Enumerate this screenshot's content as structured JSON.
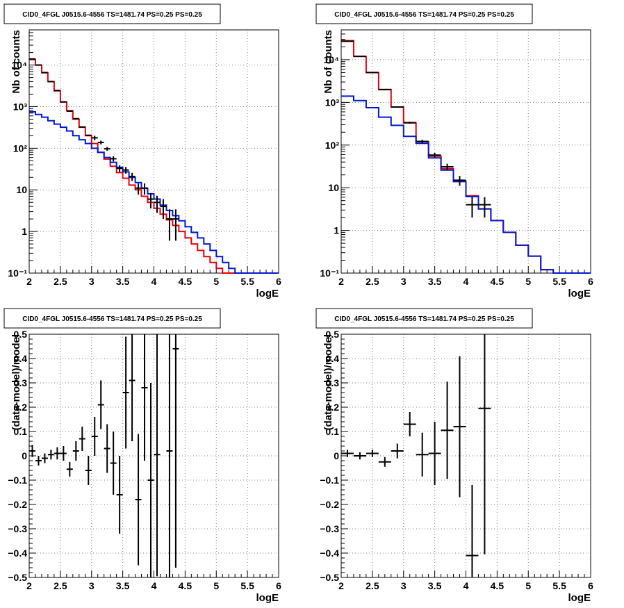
{
  "colors": {
    "data": "#000000",
    "total_model": "#e8000b",
    "source_model": "#0018d6",
    "grid": "#808080"
  },
  "chart_data": [
    {
      "type": "line",
      "title": "CID0_4FGL J0515.6-4556 TS=1481.74 PS=0.25 PS=0.25",
      "xlabel": "logE",
      "ylabel": "Nb of counts",
      "xlim": [
        2,
        6
      ],
      "ylim": [
        0.1,
        70000
      ],
      "yscale": "log",
      "grid": true,
      "x_ticks": [
        "2",
        "2.5",
        "3",
        "3.5",
        "4",
        "4.5",
        "5",
        "5.5",
        "6"
      ],
      "y_ticks": [
        {
          "v": 0.1,
          "label": "10⁻¹"
        },
        {
          "v": 1,
          "label": "1"
        },
        {
          "v": 10,
          "label": "10"
        },
        {
          "v": 100,
          "label": "10²"
        },
        {
          "v": 1000,
          "label": "10³"
        },
        {
          "v": 10000,
          "label": "10⁴"
        }
      ],
      "bin_width": 0.1,
      "series": [
        {
          "role": "total_model",
          "x_edges_start": 2.0,
          "values": [
            13500,
            10000,
            6500,
            4000,
            2400,
            1300,
            800,
            500,
            320,
            200,
            130,
            80,
            55,
            37,
            26,
            19,
            13,
            10,
            7,
            5,
            3.6,
            2.6,
            1.9,
            1.4,
            1.0,
            0.7,
            0.5,
            0.35,
            0.25,
            0.18,
            0.13,
            0.1,
            0.1,
            0.1,
            0.1,
            0.1,
            0.1,
            0.1,
            0.1,
            0.1
          ]
        },
        {
          "role": "source_model",
          "x_edges_start": 2.0,
          "values": [
            750,
            650,
            560,
            460,
            380,
            320,
            260,
            200,
            160,
            130,
            100,
            80,
            60,
            46,
            35,
            27,
            20,
            15,
            11,
            8,
            6,
            4.3,
            3.2,
            2.4,
            1.8,
            1.3,
            0.95,
            0.7,
            0.5,
            0.35,
            0.25,
            0.18,
            0.13,
            0.1,
            0.1,
            0.1,
            0.1,
            0.1,
            0.1,
            0.1
          ]
        },
        {
          "role": "data",
          "points": [
            [
              2.05,
              14000,
              0
            ],
            [
              2.15,
              10000,
              0
            ],
            [
              2.25,
              6600,
              0
            ],
            [
              2.35,
              4000,
              0
            ],
            [
              2.45,
              2450,
              0
            ],
            [
              2.55,
              1300,
              0
            ],
            [
              2.65,
              780,
              0
            ],
            [
              2.75,
              515,
              0
            ],
            [
              2.85,
              325,
              0
            ],
            [
              2.95,
              205,
              0
            ],
            [
              3.05,
              178,
              22
            ],
            [
              3.15,
              138,
              14
            ],
            [
              3.25,
              97,
              10
            ],
            [
              3.35,
              56,
              8
            ],
            [
              3.45,
              33,
              6
            ],
            [
              3.55,
              30,
              5.5
            ],
            [
              3.65,
              21,
              4.6
            ],
            [
              3.75,
              11,
              3.3
            ],
            [
              3.85,
              11,
              3.3
            ],
            [
              3.95,
              6,
              2.4
            ],
            [
              4.05,
              5,
              2.2
            ],
            [
              4.15,
              4,
              2
            ],
            [
              4.25,
              2,
              1.4
            ],
            [
              4.35,
              2,
              1.4
            ]
          ]
        }
      ]
    },
    {
      "type": "line",
      "title": "CID0_4FGL J0515.6-4556 TS=1481.74 PS=0.25 PS=0.25",
      "xlabel": "logE",
      "ylabel": "Nb of counts",
      "xlim": [
        2,
        6
      ],
      "ylim": [
        0.1,
        50000
      ],
      "yscale": "log",
      "grid": true,
      "x_ticks": [
        "2",
        "2.5",
        "3",
        "3.5",
        "4",
        "4.5",
        "5",
        "5.5",
        "6"
      ],
      "y_ticks": [
        {
          "v": 0.1,
          "label": "10⁻¹"
        },
        {
          "v": 1,
          "label": "1"
        },
        {
          "v": 10,
          "label": "10"
        },
        {
          "v": 100,
          "label": "10²"
        },
        {
          "v": 1000,
          "label": "10³"
        },
        {
          "v": 10000,
          "label": "10⁴"
        }
      ],
      "bin_width": 0.2,
      "series": [
        {
          "role": "total_model",
          "x_edges_start": 2.0,
          "values": [
            28000,
            12000,
            5000,
            2000,
            780,
            330,
            120,
            55,
            28,
            14,
            6.5,
            3.2,
            1.7,
            0.9,
            0.45,
            0.25,
            0.12,
            0.1,
            0.1,
            0.1
          ]
        },
        {
          "role": "source_model",
          "x_edges_start": 2.0,
          "values": [
            1400,
            1100,
            750,
            450,
            290,
            160,
            110,
            50,
            26,
            14,
            6.2,
            3.2,
            1.7,
            0.9,
            0.45,
            0.25,
            0.12,
            0.1,
            0.1,
            0.1
          ]
        },
        {
          "role": "data",
          "points": [
            [
              2.1,
              27000,
              0
            ],
            [
              2.3,
              12000,
              0
            ],
            [
              2.5,
              5000,
              0
            ],
            [
              2.7,
              2000,
              0
            ],
            [
              2.9,
              780,
              0
            ],
            [
              3.1,
              335,
              18
            ],
            [
              3.3,
              122,
              11
            ],
            [
              3.5,
              58,
              7.6
            ],
            [
              3.7,
              31,
              5.5
            ],
            [
              3.9,
              15,
              3.9
            ],
            [
              4.1,
              4,
              2
            ],
            [
              4.3,
              4,
              2
            ]
          ]
        }
      ]
    },
    {
      "type": "scatter",
      "title": "CID0_4FGL J0515.6-4556 TS=1481.74 PS=0.25 PS=0.25",
      "xlabel": "logE",
      "ylabel": "(data-model)/model",
      "xlim": [
        2,
        6
      ],
      "ylim": [
        -0.5,
        0.5
      ],
      "yscale": "linear",
      "grid": true,
      "x_ticks": [
        "2",
        "2.5",
        "3",
        "3.5",
        "4",
        "4.5",
        "5",
        "5.5",
        "6"
      ],
      "y_ticks": [
        {
          "v": -0.5,
          "label": "−0.5"
        },
        {
          "v": -0.4,
          "label": "−0.4"
        },
        {
          "v": -0.3,
          "label": "−0.3"
        },
        {
          "v": -0.2,
          "label": "−0.2"
        },
        {
          "v": -0.1,
          "label": "−0.1"
        },
        {
          "v": 0,
          "label": "0"
        },
        {
          "v": 0.1,
          "label": "0.1"
        },
        {
          "v": 0.2,
          "label": "0.2"
        },
        {
          "v": 0.3,
          "label": "0.3"
        },
        {
          "v": 0.4,
          "label": "0.4"
        },
        {
          "v": 0.5,
          "label": "0.5"
        }
      ],
      "bin_width": 0.1,
      "series": [
        {
          "role": "data",
          "points": [
            [
              2.05,
              0.02,
              0.025
            ],
            [
              2.15,
              -0.02,
              0.02
            ],
            [
              2.25,
              -0.01,
              0.02
            ],
            [
              2.35,
              0.005,
              0.02
            ],
            [
              2.45,
              0.01,
              0.025
            ],
            [
              2.55,
              0.01,
              0.03
            ],
            [
              2.65,
              -0.055,
              0.03
            ],
            [
              2.75,
              0.02,
              0.04
            ],
            [
              2.85,
              0.07,
              0.05
            ],
            [
              2.95,
              -0.06,
              0.06
            ],
            [
              3.05,
              0.08,
              0.08
            ],
            [
              3.15,
              0.21,
              0.1
            ],
            [
              3.25,
              0.03,
              0.1
            ],
            [
              3.35,
              -0.03,
              0.13
            ],
            [
              3.45,
              -0.16,
              0.16
            ],
            [
              3.55,
              0.26,
              0.23
            ],
            [
              3.65,
              0.31,
              0.25
            ],
            [
              3.75,
              -0.18,
              0.27
            ],
            [
              3.85,
              0.28,
              0.3
            ],
            [
              3.95,
              -0.1,
              0.4
            ],
            [
              4.05,
              0.005,
              0.5
            ],
            [
              4.25,
              0.02,
              0.7
            ],
            [
              4.35,
              0.44,
              0.9
            ]
          ]
        }
      ]
    },
    {
      "type": "scatter",
      "title": "CID0_4FGL J0515.6-4556 TS=1481.74 PS=0.25 PS=0.25",
      "xlabel": "logE",
      "ylabel": "(data-model)/model",
      "xlim": [
        2,
        6
      ],
      "ylim": [
        -0.5,
        0.5
      ],
      "yscale": "linear",
      "grid": true,
      "x_ticks": [
        "2",
        "2.5",
        "3",
        "3.5",
        "4",
        "4.5",
        "5",
        "5.5",
        "6"
      ],
      "y_ticks": [
        {
          "v": -0.5,
          "label": "−0.5"
        },
        {
          "v": -0.4,
          "label": "−0.4"
        },
        {
          "v": -0.3,
          "label": "−0.3"
        },
        {
          "v": -0.2,
          "label": "−0.2"
        },
        {
          "v": -0.1,
          "label": "−0.1"
        },
        {
          "v": 0,
          "label": "0"
        },
        {
          "v": 0.1,
          "label": "0.1"
        },
        {
          "v": 0.2,
          "label": "0.2"
        },
        {
          "v": 0.3,
          "label": "0.3"
        },
        {
          "v": 0.4,
          "label": "0.4"
        },
        {
          "v": 0.5,
          "label": "0.5"
        }
      ],
      "bin_width": 0.2,
      "series": [
        {
          "role": "data",
          "points": [
            [
              2.1,
              0.01,
              0.015
            ],
            [
              2.3,
              0.0,
              0.015
            ],
            [
              2.5,
              0.01,
              0.015
            ],
            [
              2.7,
              -0.025,
              0.02
            ],
            [
              2.9,
              0.02,
              0.03
            ],
            [
              3.1,
              0.13,
              0.05
            ],
            [
              3.3,
              0.005,
              0.09
            ],
            [
              3.5,
              0.01,
              0.13
            ],
            [
              3.7,
              0.105,
              0.2
            ],
            [
              3.9,
              0.12,
              0.29
            ],
            [
              4.1,
              -0.41,
              0.29
            ],
            [
              4.3,
              0.195,
              0.6
            ]
          ]
        }
      ]
    }
  ]
}
